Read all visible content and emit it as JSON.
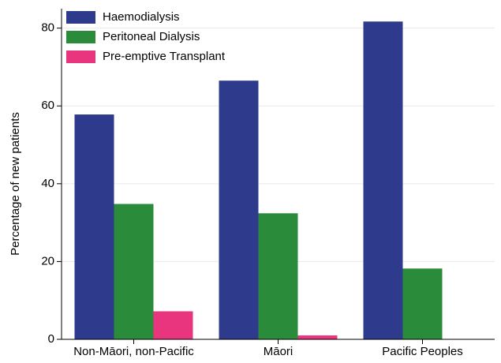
{
  "chart_data": {
    "type": "bar",
    "y_label": "Percentage of new patients",
    "categories": [
      "Non-Māori, non-Pacific",
      "Māori",
      "Pacific Peoples"
    ],
    "series": [
      {
        "name": "Haemodialysis",
        "color": "#2e3a8c",
        "values": [
          57.8,
          66.5,
          81.7
        ]
      },
      {
        "name": "Peritoneal Dialysis",
        "color": "#2a8c3b",
        "values": [
          34.8,
          32.4,
          18.2
        ]
      },
      {
        "name": "Pre-emptive Transplant",
        "color": "#e8357e",
        "values": [
          7.2,
          1.0,
          0
        ]
      }
    ],
    "ylim": [
      0,
      85
    ],
    "yticks": [
      0,
      20,
      40,
      60,
      80
    ],
    "grid": true,
    "legend": "top-left"
  }
}
